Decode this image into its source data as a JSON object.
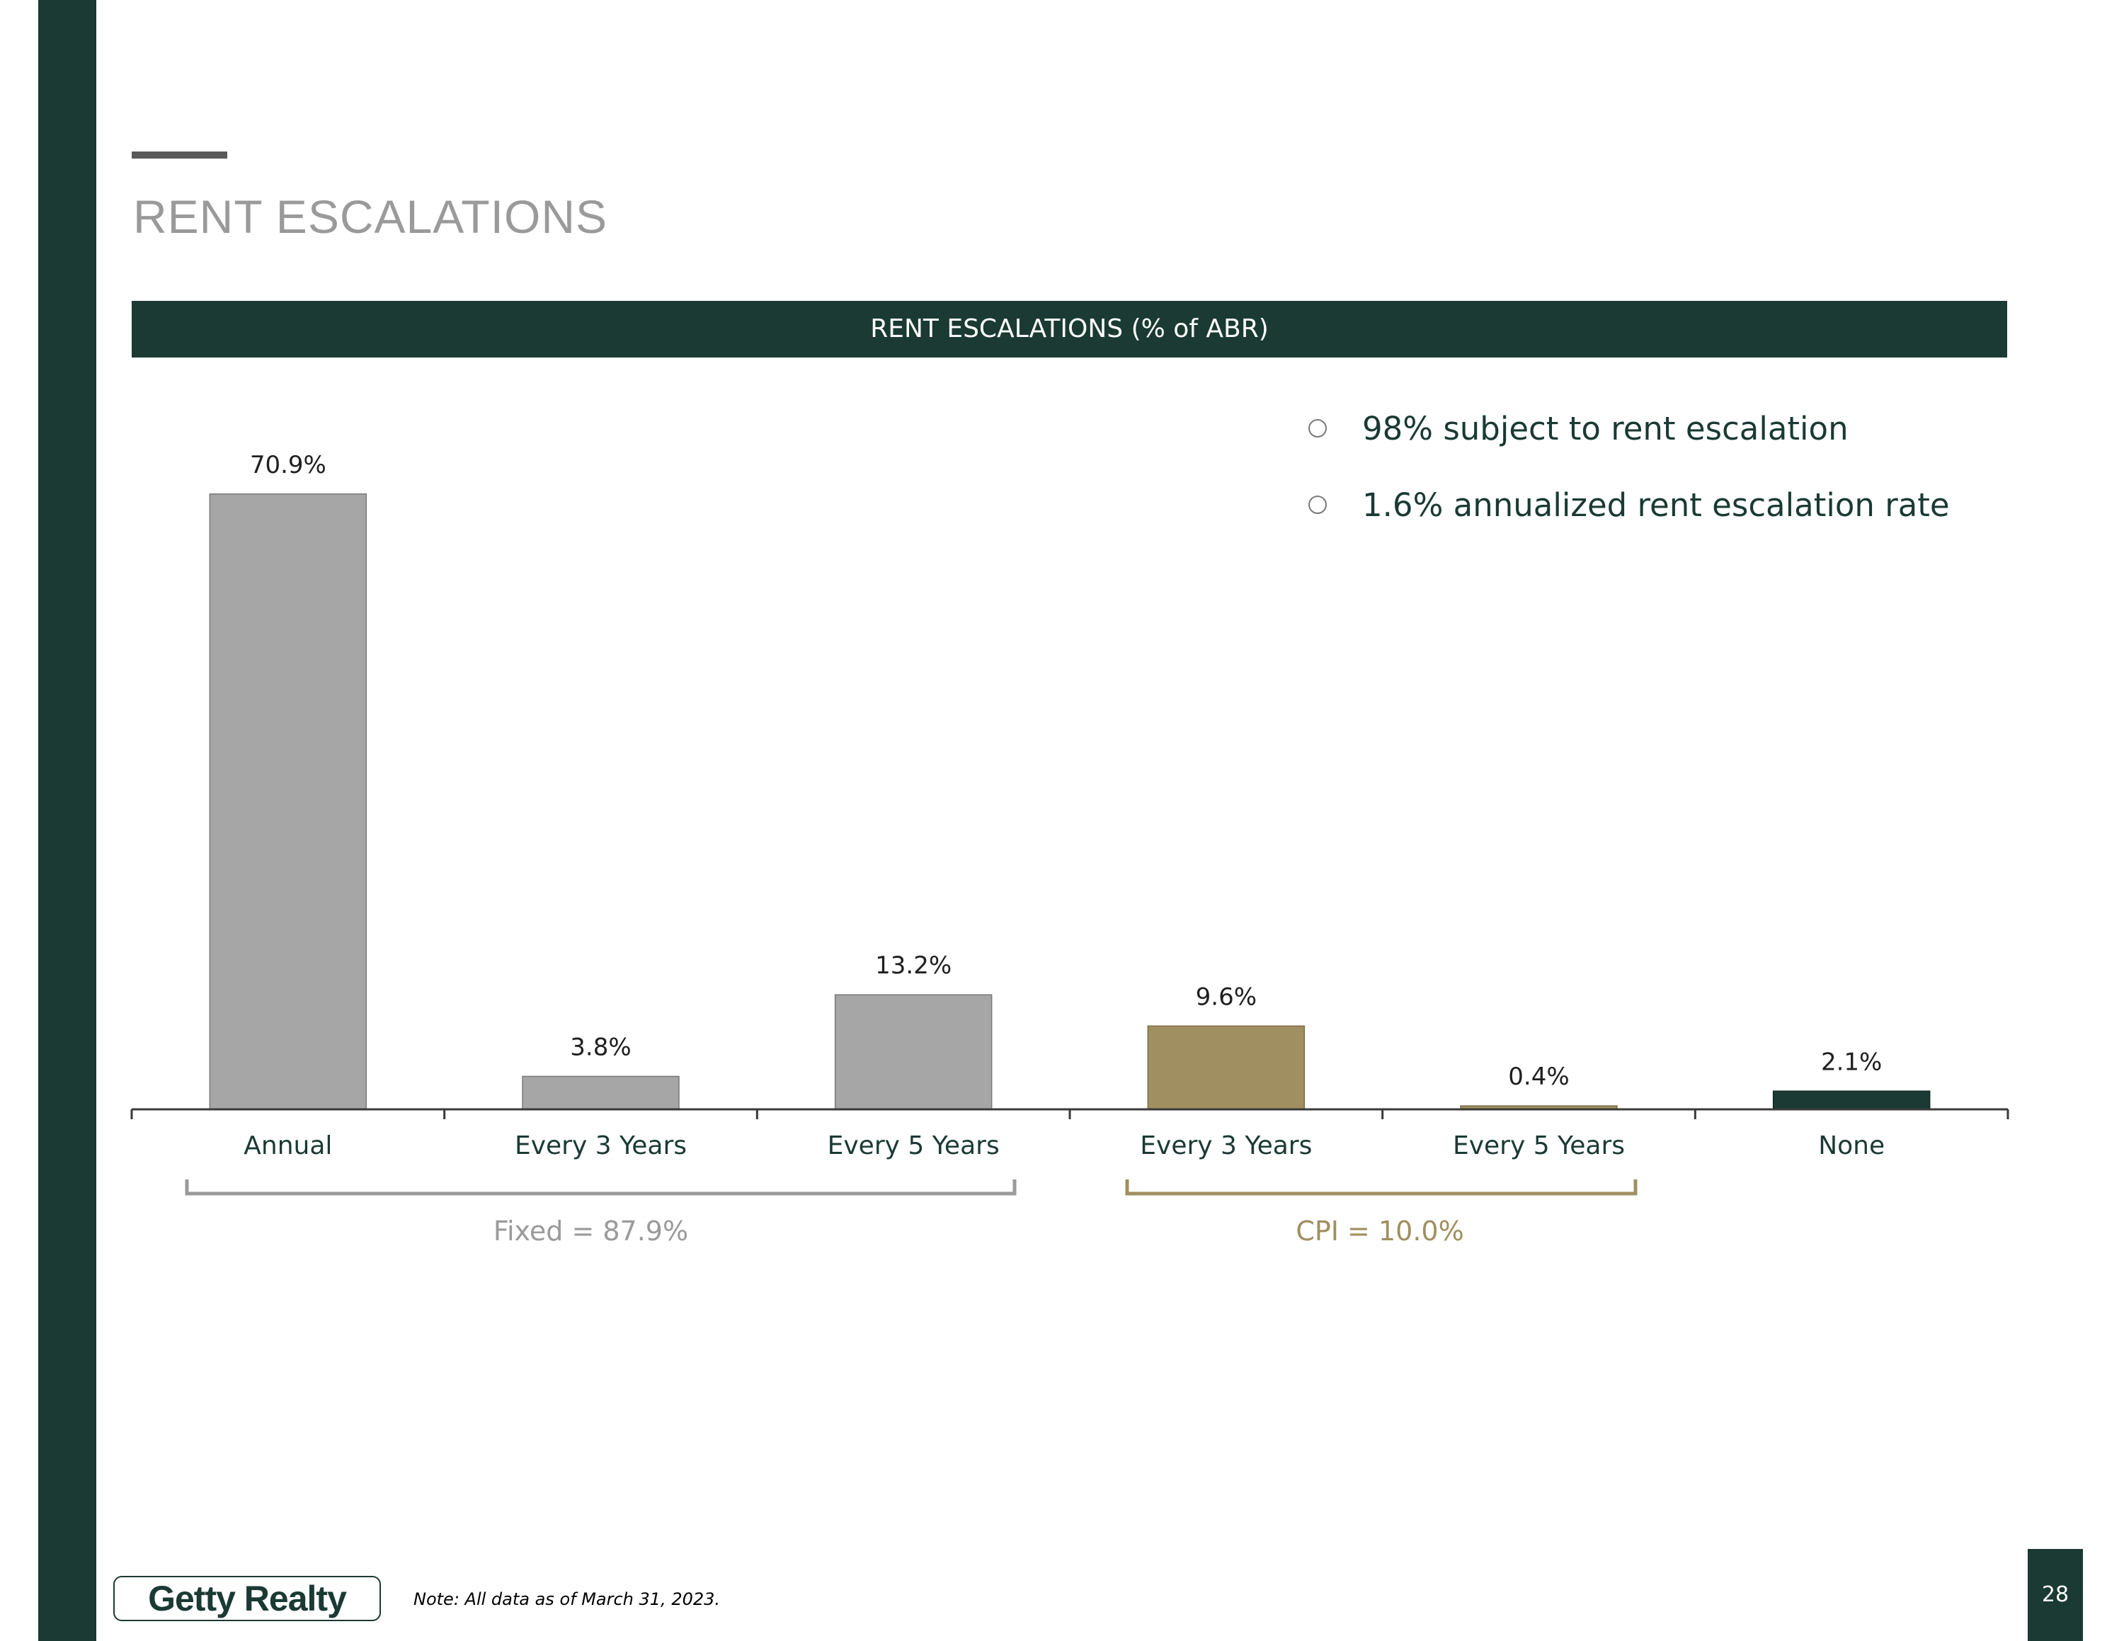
{
  "page": {
    "title": "RENT ESCALATIONS",
    "chart_header": "RENT ESCALATIONS (% of ABR)",
    "bullets": [
      "98% subject to rent escalation",
      "1.6% annualized rent escalation rate"
    ],
    "logo_text": "Getty Realty",
    "note": "Note: All data as of March 31, 2023.",
    "page_number": "28"
  },
  "colors": {
    "brand_dark_green": "#1a3a33",
    "fixed_gray": "#a6a6a6",
    "cpi_gold": "#a08f60",
    "none_green": "#1a3a33",
    "title_gray": "#9a9a9a"
  },
  "chart_data": {
    "type": "bar",
    "title": "RENT ESCALATIONS (% of ABR)",
    "categories": [
      "Annual",
      "Every 3 Years",
      "Every 5 Years",
      "Every 3 Years",
      "Every 5 Years",
      "None"
    ],
    "values": [
      70.9,
      3.8,
      13.2,
      9.6,
      0.4,
      2.1
    ],
    "value_labels": [
      "70.9%",
      "3.8%",
      "13.2%",
      "9.6%",
      "0.4%",
      "2.1%"
    ],
    "bar_groups": [
      "fixed",
      "fixed",
      "fixed",
      "cpi",
      "cpi",
      "none"
    ],
    "groups": [
      {
        "key": "fixed",
        "label": "Fixed = 87.9%",
        "start_index": 0,
        "end_index": 2
      },
      {
        "key": "cpi",
        "label": "CPI = 10.0%",
        "start_index": 3,
        "end_index": 4
      }
    ],
    "xlabel": "",
    "ylabel": "",
    "ylim": [
      0,
      80
    ],
    "grid": false,
    "legend": "none"
  }
}
